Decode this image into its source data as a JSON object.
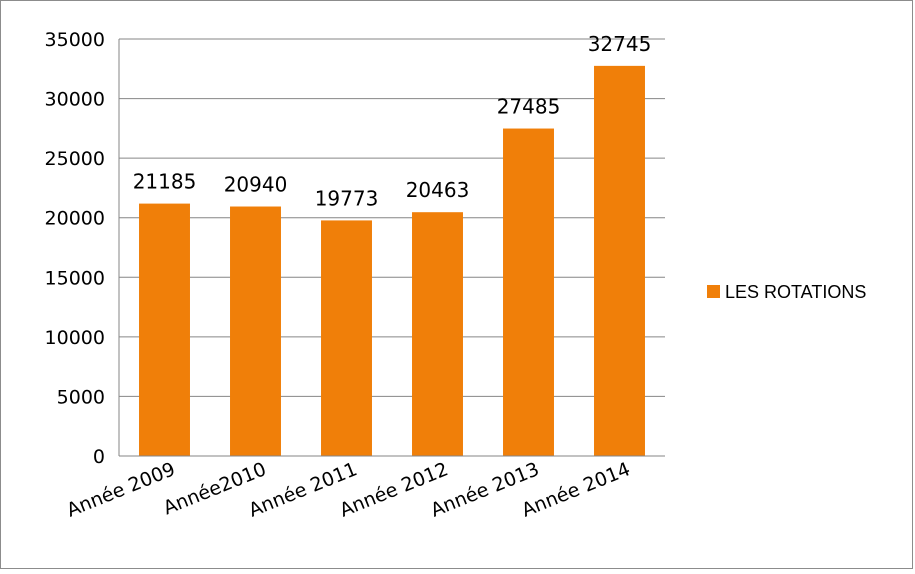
{
  "chart_data": {
    "type": "bar",
    "categories": [
      "Année 2009",
      "Année2010",
      "Année 2011",
      "Année 2012",
      "Année 2013",
      "Année 2014"
    ],
    "series": [
      {
        "name": "LES ROTATIONS",
        "values": [
          21185,
          20940,
          19773,
          20463,
          27485,
          32745
        ]
      }
    ],
    "ylim": [
      0,
      35000
    ],
    "yticks": [
      0,
      5000,
      10000,
      15000,
      20000,
      25000,
      30000,
      35000
    ],
    "grid": true,
    "legend": "right",
    "bar_color": "#f07f09",
    "gridline_color": "#868686"
  }
}
